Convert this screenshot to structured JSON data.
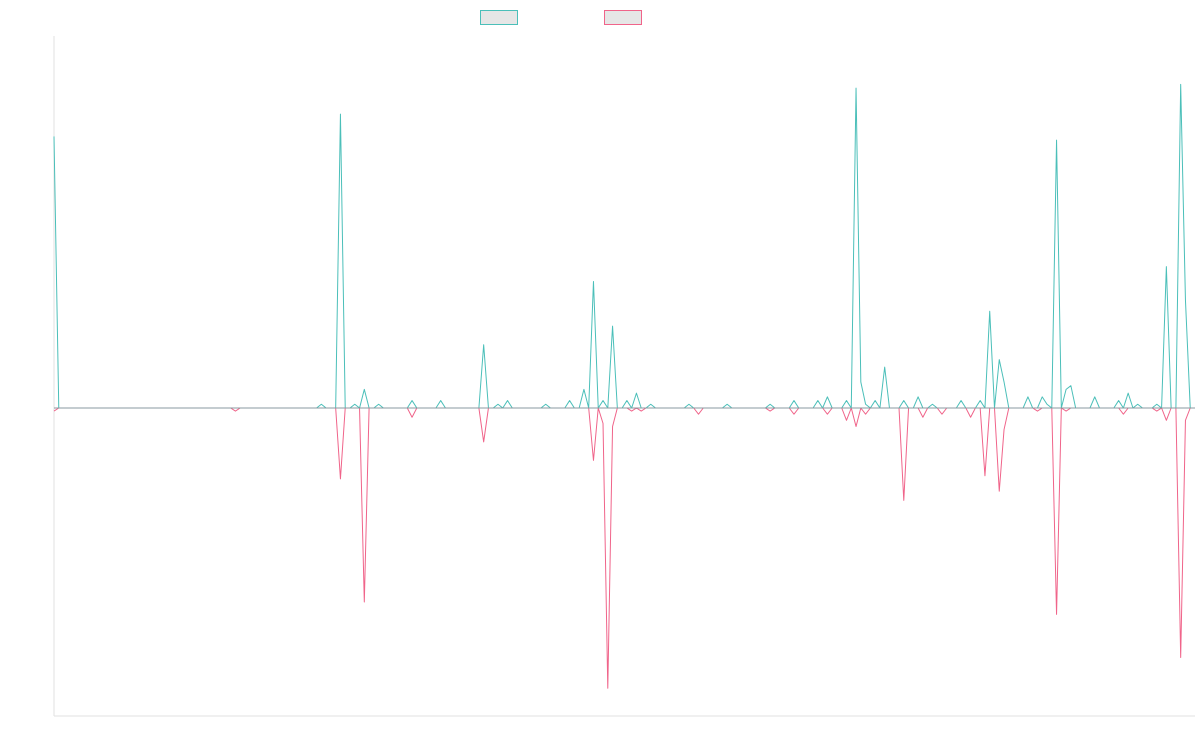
{
  "chart_data": {
    "type": "line",
    "title": "",
    "xlabel": "",
    "ylabel": "",
    "grid": false,
    "legend": {
      "placement": "top-center"
    },
    "x": {
      "n": 240,
      "range": [
        0,
        239
      ]
    },
    "ylim": [
      -1.0,
      1.0
    ],
    "series": [
      {
        "name": "",
        "color": "#4bbfb9",
        "direction": "up",
        "spikes": [
          [
            0,
            0.73
          ],
          [
            56,
            0.01
          ],
          [
            60,
            0.79
          ],
          [
            63,
            0.01
          ],
          [
            65,
            0.05
          ],
          [
            68,
            0.01
          ],
          [
            75,
            0.02
          ],
          [
            81,
            0.02
          ],
          [
            90,
            0.17
          ],
          [
            93,
            0.01
          ],
          [
            95,
            0.02
          ],
          [
            103,
            0.01
          ],
          [
            108,
            0.02
          ],
          [
            111,
            0.05
          ],
          [
            113,
            0.34
          ],
          [
            115,
            0.02
          ],
          [
            117,
            0.22
          ],
          [
            120,
            0.02
          ],
          [
            122,
            0.04
          ],
          [
            125,
            0.01
          ],
          [
            133,
            0.01
          ],
          [
            141,
            0.01
          ],
          [
            150,
            0.01
          ],
          [
            155,
            0.02
          ],
          [
            160,
            0.02
          ],
          [
            162,
            0.03
          ],
          [
            166,
            0.02
          ],
          [
            169,
            0.07
          ],
          [
            168,
            0.86
          ],
          [
            170,
            0.01
          ],
          [
            172,
            0.02
          ],
          [
            174,
            0.11
          ],
          [
            178,
            0.02
          ],
          [
            181,
            0.03
          ],
          [
            184,
            0.01
          ],
          [
            190,
            0.02
          ],
          [
            194,
            0.02
          ],
          [
            196,
            0.26
          ],
          [
            198,
            0.13
          ],
          [
            199,
            0.07
          ],
          [
            204,
            0.03
          ],
          [
            207,
            0.03
          ],
          [
            208,
            0.01
          ],
          [
            210,
            0.72
          ],
          [
            212,
            0.05
          ],
          [
            213,
            0.06
          ],
          [
            218,
            0.03
          ],
          [
            223,
            0.02
          ],
          [
            225,
            0.04
          ],
          [
            231,
            0.01
          ],
          [
            233,
            0.38
          ],
          [
            236,
            0.87
          ],
          [
            237,
            0.29
          ],
          [
            227,
            0.01
          ]
        ]
      },
      {
        "name": "",
        "color": "#f0648a",
        "direction": "down",
        "spikes": [
          [
            0,
            0.01
          ],
          [
            38,
            0.01
          ],
          [
            60,
            0.23
          ],
          [
            65,
            0.63
          ],
          [
            75,
            0.03
          ],
          [
            90,
            0.11
          ],
          [
            113,
            0.17
          ],
          [
            115,
            0.05
          ],
          [
            116,
            0.91
          ],
          [
            117,
            0.06
          ],
          [
            121,
            0.01
          ],
          [
            123,
            0.01
          ],
          [
            135,
            0.02
          ],
          [
            150,
            0.01
          ],
          [
            155,
            0.02
          ],
          [
            162,
            0.02
          ],
          [
            166,
            0.04
          ],
          [
            168,
            0.06
          ],
          [
            170,
            0.02
          ],
          [
            178,
            0.3
          ],
          [
            182,
            0.03
          ],
          [
            186,
            0.02
          ],
          [
            192,
            0.03
          ],
          [
            195,
            0.22
          ],
          [
            198,
            0.27
          ],
          [
            199,
            0.07
          ],
          [
            206,
            0.01
          ],
          [
            210,
            0.67
          ],
          [
            212,
            0.01
          ],
          [
            224,
            0.02
          ],
          [
            231,
            0.01
          ],
          [
            233,
            0.04
          ],
          [
            236,
            0.81
          ],
          [
            237,
            0.04
          ]
        ]
      }
    ]
  }
}
